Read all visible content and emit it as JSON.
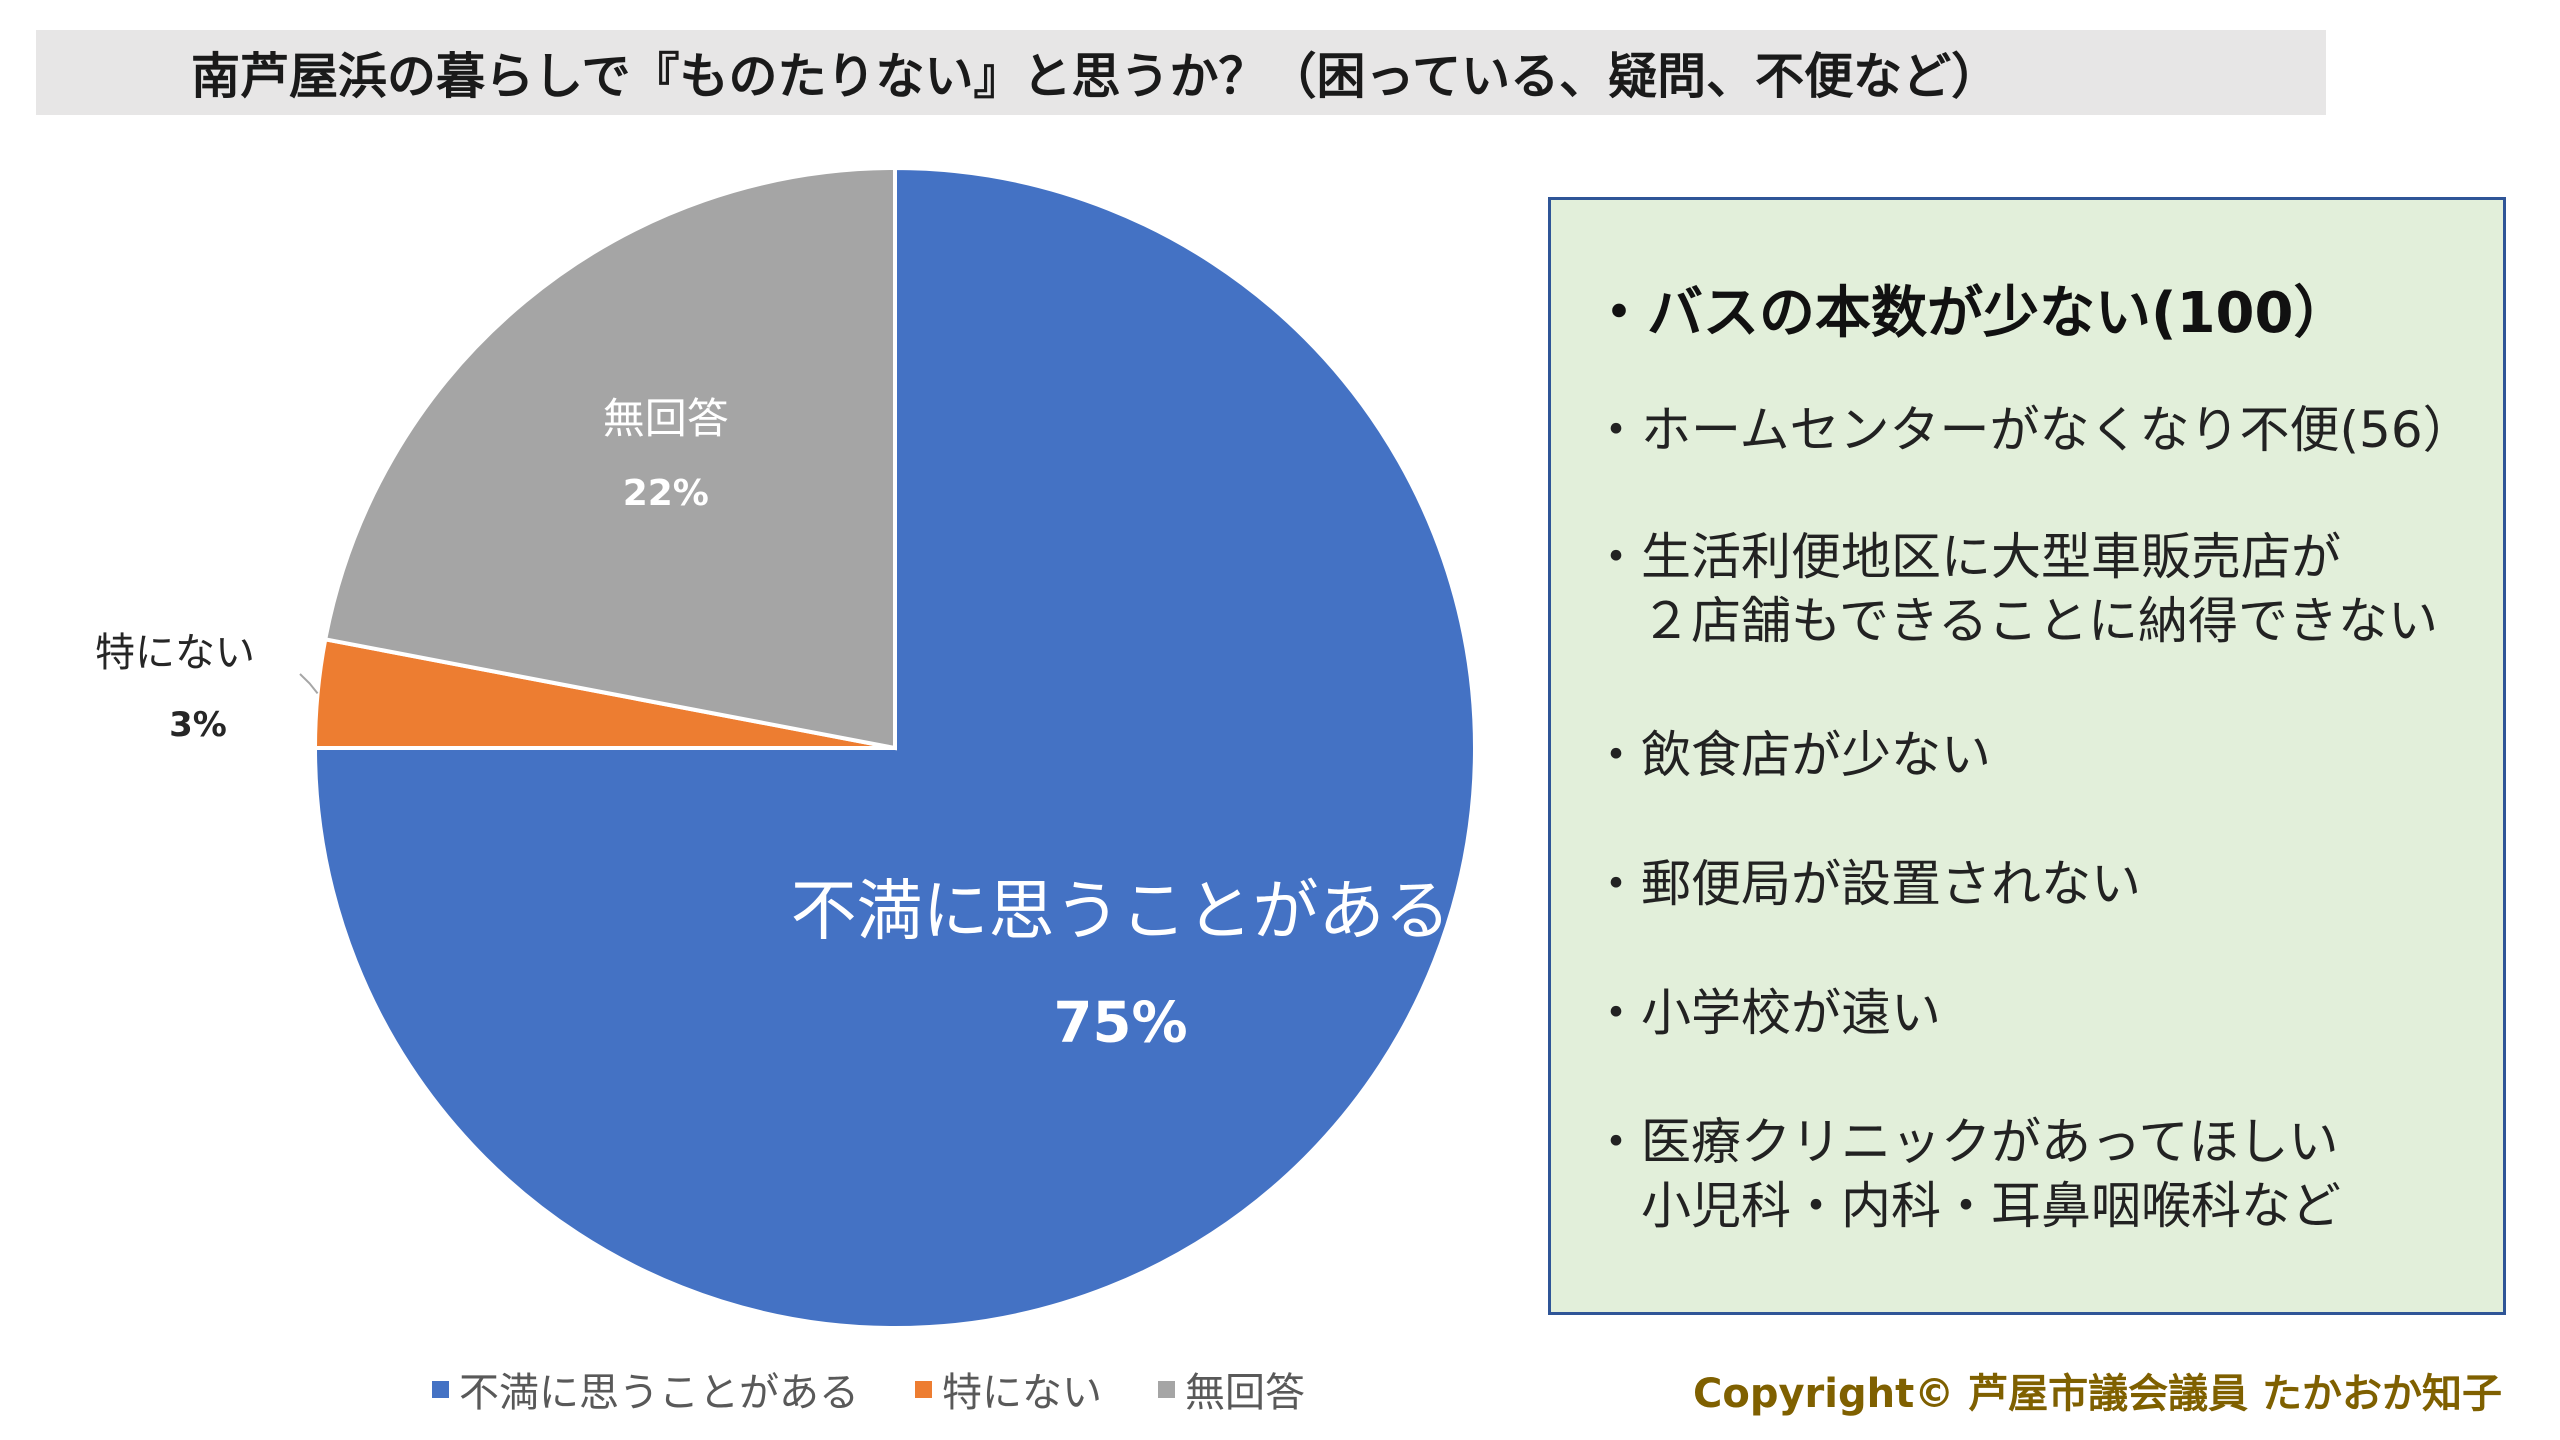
{
  "title": "南芦屋浜の暮らしで『ものたりない』と思うか？（困っている、疑問、不便など）",
  "chart_data": {
    "type": "pie",
    "start_angle_deg": 0,
    "direction": "clockwise",
    "slices": [
      {
        "label": "不満に思うことがある",
        "value": 75,
        "value_label": "75%",
        "color": "#4472c4"
      },
      {
        "label": "特にない",
        "value": 3,
        "value_label": "3%",
        "color": "#ed7d31"
      },
      {
        "label": "無回答",
        "value": 22,
        "value_label": "22%",
        "color": "#a5a5a5"
      }
    ],
    "legend": {
      "position": "bottom"
    }
  },
  "info": {
    "heading": "・バスの本数が少ない(100）",
    "items": [
      "・ホームセンターがなくなり不便(56）",
      "・生活利便地区に大型車販売店が",
      "　２店舗もできることに納得できない",
      "・飲食店が少ない",
      "・郵便局が設置されない",
      "・小学校が遠い",
      "・医療クリニックがあってほしい",
      "　小児科・内科・耳鼻咽喉科など"
    ]
  },
  "copyright": "Copyright© 芦屋市議会議員 たかおか知子",
  "colors": {
    "title_bg": "#e7e6e6",
    "box_bg": "#e2efda",
    "box_border": "#2f5597",
    "copyright": "#7f6000"
  }
}
